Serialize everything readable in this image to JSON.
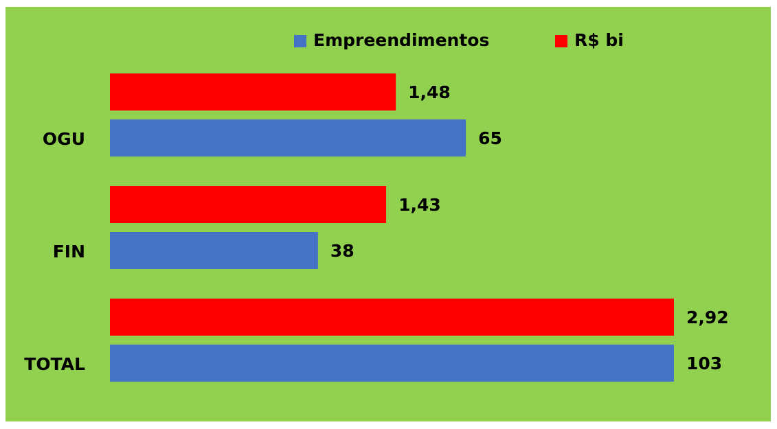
{
  "chart_data": {
    "type": "bar",
    "orientation": "horizontal",
    "categories": [
      "OGU",
      "FIN",
      "TOTAL"
    ],
    "series": [
      {
        "name": "Empreendimentos",
        "color": "#4472c4",
        "values": [
          65,
          38,
          103
        ],
        "axis": "x"
      },
      {
        "name": "R$ bi",
        "color": "#ff0000",
        "values": [
          1.48,
          1.43,
          2.92
        ],
        "value_labels": [
          "1,48",
          "1,43",
          "2,92"
        ],
        "axis": "x2"
      }
    ],
    "xlim": [
      0,
      103
    ],
    "x2lim": [
      0,
      2.92
    ],
    "background": "#92d050",
    "legend": "top"
  }
}
